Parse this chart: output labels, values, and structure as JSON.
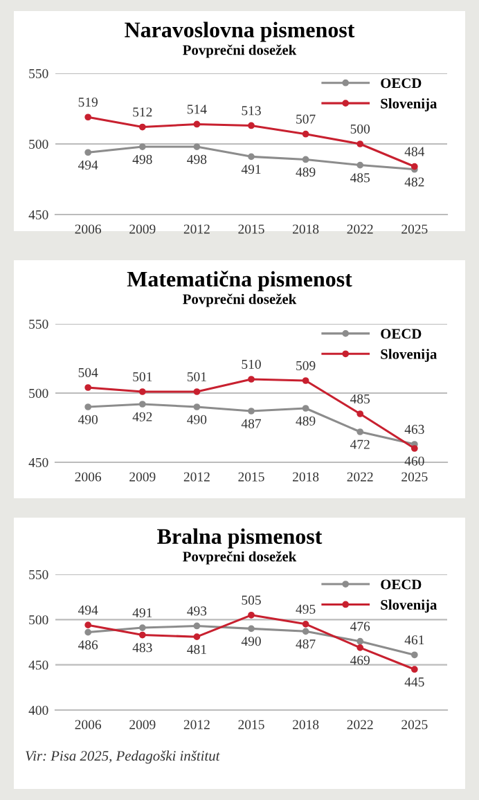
{
  "chart_data": [
    {
      "type": "line",
      "title": "Naravoslovna pismenost",
      "subtitle": "Povprečni dosežek",
      "categories": [
        "2006",
        "2009",
        "2012",
        "2015",
        "2018",
        "2022",
        "2025"
      ],
      "series": [
        {
          "name": "OECD",
          "color": "#8c8c8c",
          "values": [
            494,
            498,
            498,
            491,
            489,
            485,
            482
          ]
        },
        {
          "name": "Slovenija",
          "color": "#c8202f",
          "values": [
            519,
            512,
            514,
            513,
            507,
            500,
            484
          ]
        }
      ],
      "ylim": [
        450,
        550
      ],
      "yticks": [
        450,
        500,
        550
      ],
      "grid": "y",
      "legend": "top right",
      "marker": "circle",
      "line_style": "solid",
      "data_labels": true
    },
    {
      "type": "line",
      "title": "Matematična pismenost",
      "subtitle": "Povprečni dosežek",
      "categories": [
        "2006",
        "2009",
        "2012",
        "2015",
        "2018",
        "2022",
        "2025"
      ],
      "series": [
        {
          "name": "OECD",
          "color": "#8c8c8c",
          "values": [
            490,
            492,
            490,
            487,
            489,
            472,
            463
          ]
        },
        {
          "name": "Slovenija",
          "color": "#c8202f",
          "values": [
            504,
            501,
            501,
            510,
            509,
            485,
            460
          ]
        }
      ],
      "ylim": [
        450,
        550
      ],
      "yticks": [
        450,
        500,
        550
      ],
      "grid": "y",
      "legend": "top right",
      "marker": "circle",
      "line_style": "solid",
      "data_labels": true
    },
    {
      "type": "line",
      "title": "Bralna pismenost",
      "subtitle": "Povprečni dosežek",
      "categories": [
        "2006",
        "2009",
        "2012",
        "2015",
        "2018",
        "2022",
        "2025"
      ],
      "series": [
        {
          "name": "OECD",
          "color": "#8c8c8c",
          "values": [
            486,
            491,
            493,
            490,
            487,
            476,
            461
          ]
        },
        {
          "name": "Slovenija",
          "color": "#c8202f",
          "values": [
            494,
            483,
            481,
            505,
            495,
            469,
            445
          ]
        }
      ],
      "ylim": [
        400,
        550
      ],
      "yticks": [
        400,
        450,
        500,
        550
      ],
      "grid": "y",
      "legend": "top right",
      "marker": "circle",
      "line_style": "solid",
      "data_labels": true,
      "annotations": [
        "Vir: Pisa 2025, Pedagoški inštitut"
      ]
    }
  ]
}
